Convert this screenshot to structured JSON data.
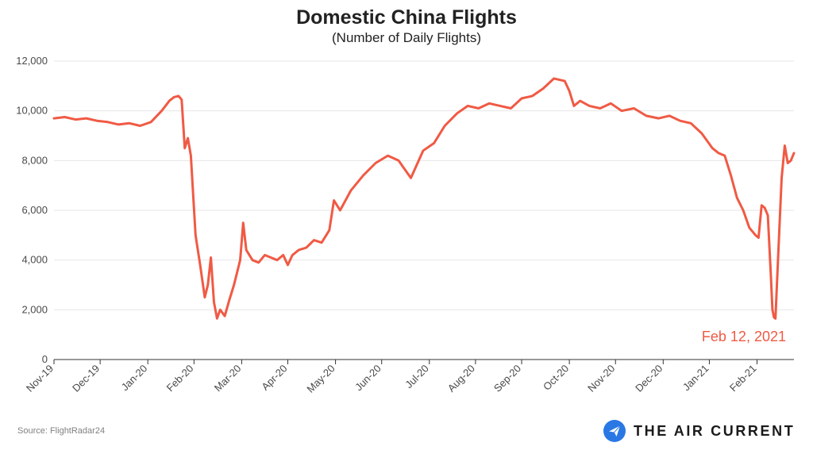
{
  "chart_data": {
    "type": "line",
    "title": "Domestic China Flights",
    "subtitle": "(Number of Daily Flights)",
    "xlabel": "",
    "ylabel": "",
    "ylim": [
      0,
      12000
    ],
    "y_ticks": [
      0,
      2000,
      4000,
      6000,
      8000,
      10000,
      12000
    ],
    "y_tick_labels": [
      "0",
      "2,000",
      "4,000",
      "6,000",
      "8,000",
      "10,000",
      "12,000"
    ],
    "x_tick_labels": [
      "Nov-19",
      "Dec-19",
      "Jan-20",
      "Feb-20",
      "Mar-20",
      "Apr-20",
      "May-20",
      "Jun-20",
      "Jul-20",
      "Aug-20",
      "Sep-20",
      "Oct-20",
      "Nov-20",
      "Dec-20",
      "Jan-21",
      "Feb-21"
    ],
    "grid": "horizontal",
    "line_color": "#f05a44",
    "annotation": "Feb 12, 2021",
    "series": [
      {
        "x": [
          "2019-11-01",
          "2019-11-08",
          "2019-11-15",
          "2019-11-22",
          "2019-11-29",
          "2019-12-06",
          "2019-12-13",
          "2019-12-20",
          "2019-12-27",
          "2020-01-03",
          "2020-01-10",
          "2020-01-15",
          "2020-01-18",
          "2020-01-21",
          "2020-01-23",
          "2020-01-25",
          "2020-01-27",
          "2020-01-29",
          "2020-02-01",
          "2020-02-04",
          "2020-02-07",
          "2020-02-09",
          "2020-02-11",
          "2020-02-13",
          "2020-02-15",
          "2020-02-17",
          "2020-02-20",
          "2020-02-23",
          "2020-02-26",
          "2020-03-01",
          "2020-03-03",
          "2020-03-05",
          "2020-03-09",
          "2020-03-13",
          "2020-03-17",
          "2020-03-21",
          "2020-03-25",
          "2020-03-29",
          "2020-04-01",
          "2020-04-04",
          "2020-04-08",
          "2020-04-13",
          "2020-04-18",
          "2020-04-23",
          "2020-04-28",
          "2020-05-01",
          "2020-05-05",
          "2020-05-12",
          "2020-05-20",
          "2020-05-28",
          "2020-06-05",
          "2020-06-12",
          "2020-06-20",
          "2020-06-28",
          "2020-07-05",
          "2020-07-12",
          "2020-07-20",
          "2020-07-27",
          "2020-08-03",
          "2020-08-10",
          "2020-08-17",
          "2020-08-24",
          "2020-08-31",
          "2020-09-07",
          "2020-09-14",
          "2020-09-21",
          "2020-09-28",
          "2020-10-01",
          "2020-10-04",
          "2020-10-08",
          "2020-10-14",
          "2020-10-21",
          "2020-10-28",
          "2020-11-04",
          "2020-11-12",
          "2020-11-20",
          "2020-11-28",
          "2020-12-05",
          "2020-12-12",
          "2020-12-19",
          "2020-12-26",
          "2021-01-02",
          "2021-01-06",
          "2021-01-10",
          "2021-01-14",
          "2021-01-18",
          "2021-01-22",
          "2021-01-26",
          "2021-01-30",
          "2021-02-01",
          "2021-02-03",
          "2021-02-05",
          "2021-02-07",
          "2021-02-09",
          "2021-02-10",
          "2021-02-11",
          "2021-02-12",
          "2021-02-14",
          "2021-02-16",
          "2021-02-18",
          "2021-02-20",
          "2021-02-22",
          "2021-02-24"
        ],
        "values": [
          9700,
          9750,
          9650,
          9700,
          9600,
          9550,
          9450,
          9500,
          9400,
          9550,
          10000,
          10400,
          10550,
          10600,
          10450,
          8500,
          8900,
          8200,
          5000,
          3800,
          2500,
          3000,
          4100,
          2300,
          1650,
          2000,
          1750,
          2400,
          3000,
          4000,
          5500,
          4400,
          4000,
          3900,
          4200,
          4100,
          4000,
          4200,
          3800,
          4200,
          4400,
          4500,
          4800,
          4700,
          5200,
          6400,
          6000,
          6800,
          7400,
          7900,
          8200,
          8000,
          7300,
          8400,
          8700,
          9400,
          9900,
          10200,
          10100,
          10300,
          10200,
          10100,
          10500,
          10600,
          10900,
          11300,
          11200,
          10800,
          10200,
          10400,
          10200,
          10100,
          10300,
          10000,
          10100,
          9800,
          9700,
          9800,
          9600,
          9500,
          9100,
          8500,
          8300,
          8200,
          7400,
          6500,
          6000,
          5300,
          5000,
          4900,
          6200,
          6100,
          5800,
          3400,
          2000,
          1700,
          1650,
          4500,
          7300,
          8600,
          7900,
          8000,
          8300
        ]
      }
    ]
  },
  "footer": {
    "source": "Source: FlightRadar24",
    "brand": "THE AIR CURRENT",
    "brand_color": "#2a78e4"
  }
}
